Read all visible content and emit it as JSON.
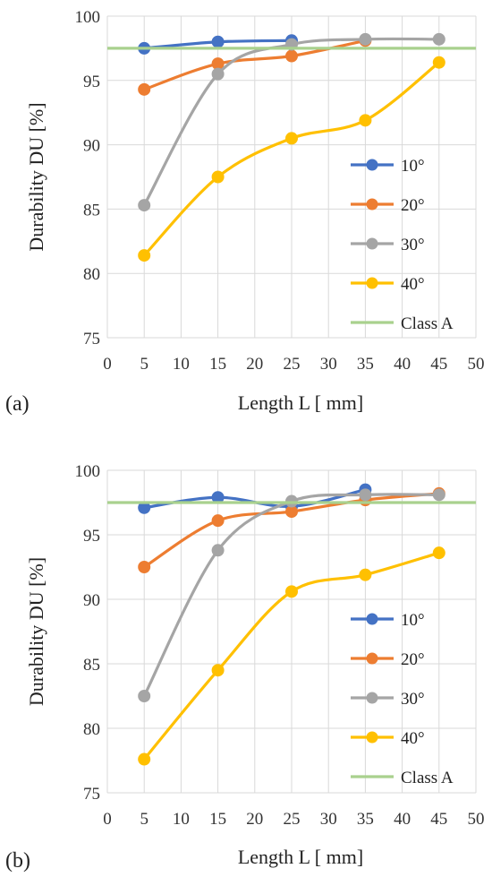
{
  "chart_data": [
    {
      "type": "line",
      "panel_label": "(a)",
      "xlabel": "Length L [ mm]",
      "ylabel": "Durability DU [%]",
      "xlim": [
        0,
        50
      ],
      "ylim": [
        75,
        100
      ],
      "x_ticks": [
        "0",
        "5",
        "10",
        "15",
        "20",
        "25",
        "30",
        "35",
        "40",
        "45",
        "50"
      ],
      "y_ticks": [
        "75",
        "80",
        "85",
        "90",
        "95",
        "100"
      ],
      "grid": true,
      "legend_position": "right",
      "series": [
        {
          "name": "10°",
          "color": "#4472c4",
          "x": [
            5,
            15,
            25
          ],
          "values": [
            97.5,
            98.0,
            98.1
          ]
        },
        {
          "name": "20°",
          "color": "#ed7d31",
          "x": [
            5,
            15,
            25,
            35
          ],
          "values": [
            94.3,
            96.3,
            96.9,
            98.1
          ]
        },
        {
          "name": "30°",
          "color": "#a5a5a5",
          "x": [
            5,
            15,
            25,
            35,
            45
          ],
          "values": [
            85.3,
            95.5,
            97.8,
            98.2,
            98.2
          ]
        },
        {
          "name": "40°",
          "color": "#ffc000",
          "x": [
            5,
            15,
            25,
            35,
            45
          ],
          "values": [
            81.4,
            87.5,
            90.5,
            91.9,
            96.4
          ]
        }
      ],
      "reference_line": {
        "name": "Class A",
        "color": "#a9d18e",
        "value": 97.5
      }
    },
    {
      "type": "line",
      "panel_label": "(b)",
      "xlabel": "Length L [ mm]",
      "ylabel": "Durability DU [%]",
      "xlim": [
        0,
        50
      ],
      "ylim": [
        75,
        100
      ],
      "x_ticks": [
        "0",
        "5",
        "10",
        "15",
        "20",
        "25",
        "30",
        "35",
        "40",
        "45",
        "50"
      ],
      "y_ticks": [
        "75",
        "80",
        "85",
        "90",
        "95",
        "100"
      ],
      "grid": true,
      "legend_position": "right",
      "series": [
        {
          "name": "10°",
          "color": "#4472c4",
          "x": [
            5,
            15,
            25,
            35
          ],
          "values": [
            97.1,
            97.9,
            97.2,
            98.5
          ]
        },
        {
          "name": "20°",
          "color": "#ed7d31",
          "x": [
            5,
            15,
            25,
            35,
            45
          ],
          "values": [
            92.5,
            96.1,
            96.8,
            97.7,
            98.2
          ]
        },
        {
          "name": "30°",
          "color": "#a5a5a5",
          "x": [
            5,
            15,
            25,
            35,
            45
          ],
          "values": [
            82.5,
            93.8,
            97.6,
            98.1,
            98.1
          ]
        },
        {
          "name": "40°",
          "color": "#ffc000",
          "x": [
            5,
            15,
            25,
            35,
            45
          ],
          "values": [
            77.6,
            84.5,
            90.6,
            91.9,
            93.6
          ]
        }
      ],
      "reference_line": {
        "name": "Class A",
        "color": "#a9d18e",
        "value": 97.5
      }
    }
  ]
}
